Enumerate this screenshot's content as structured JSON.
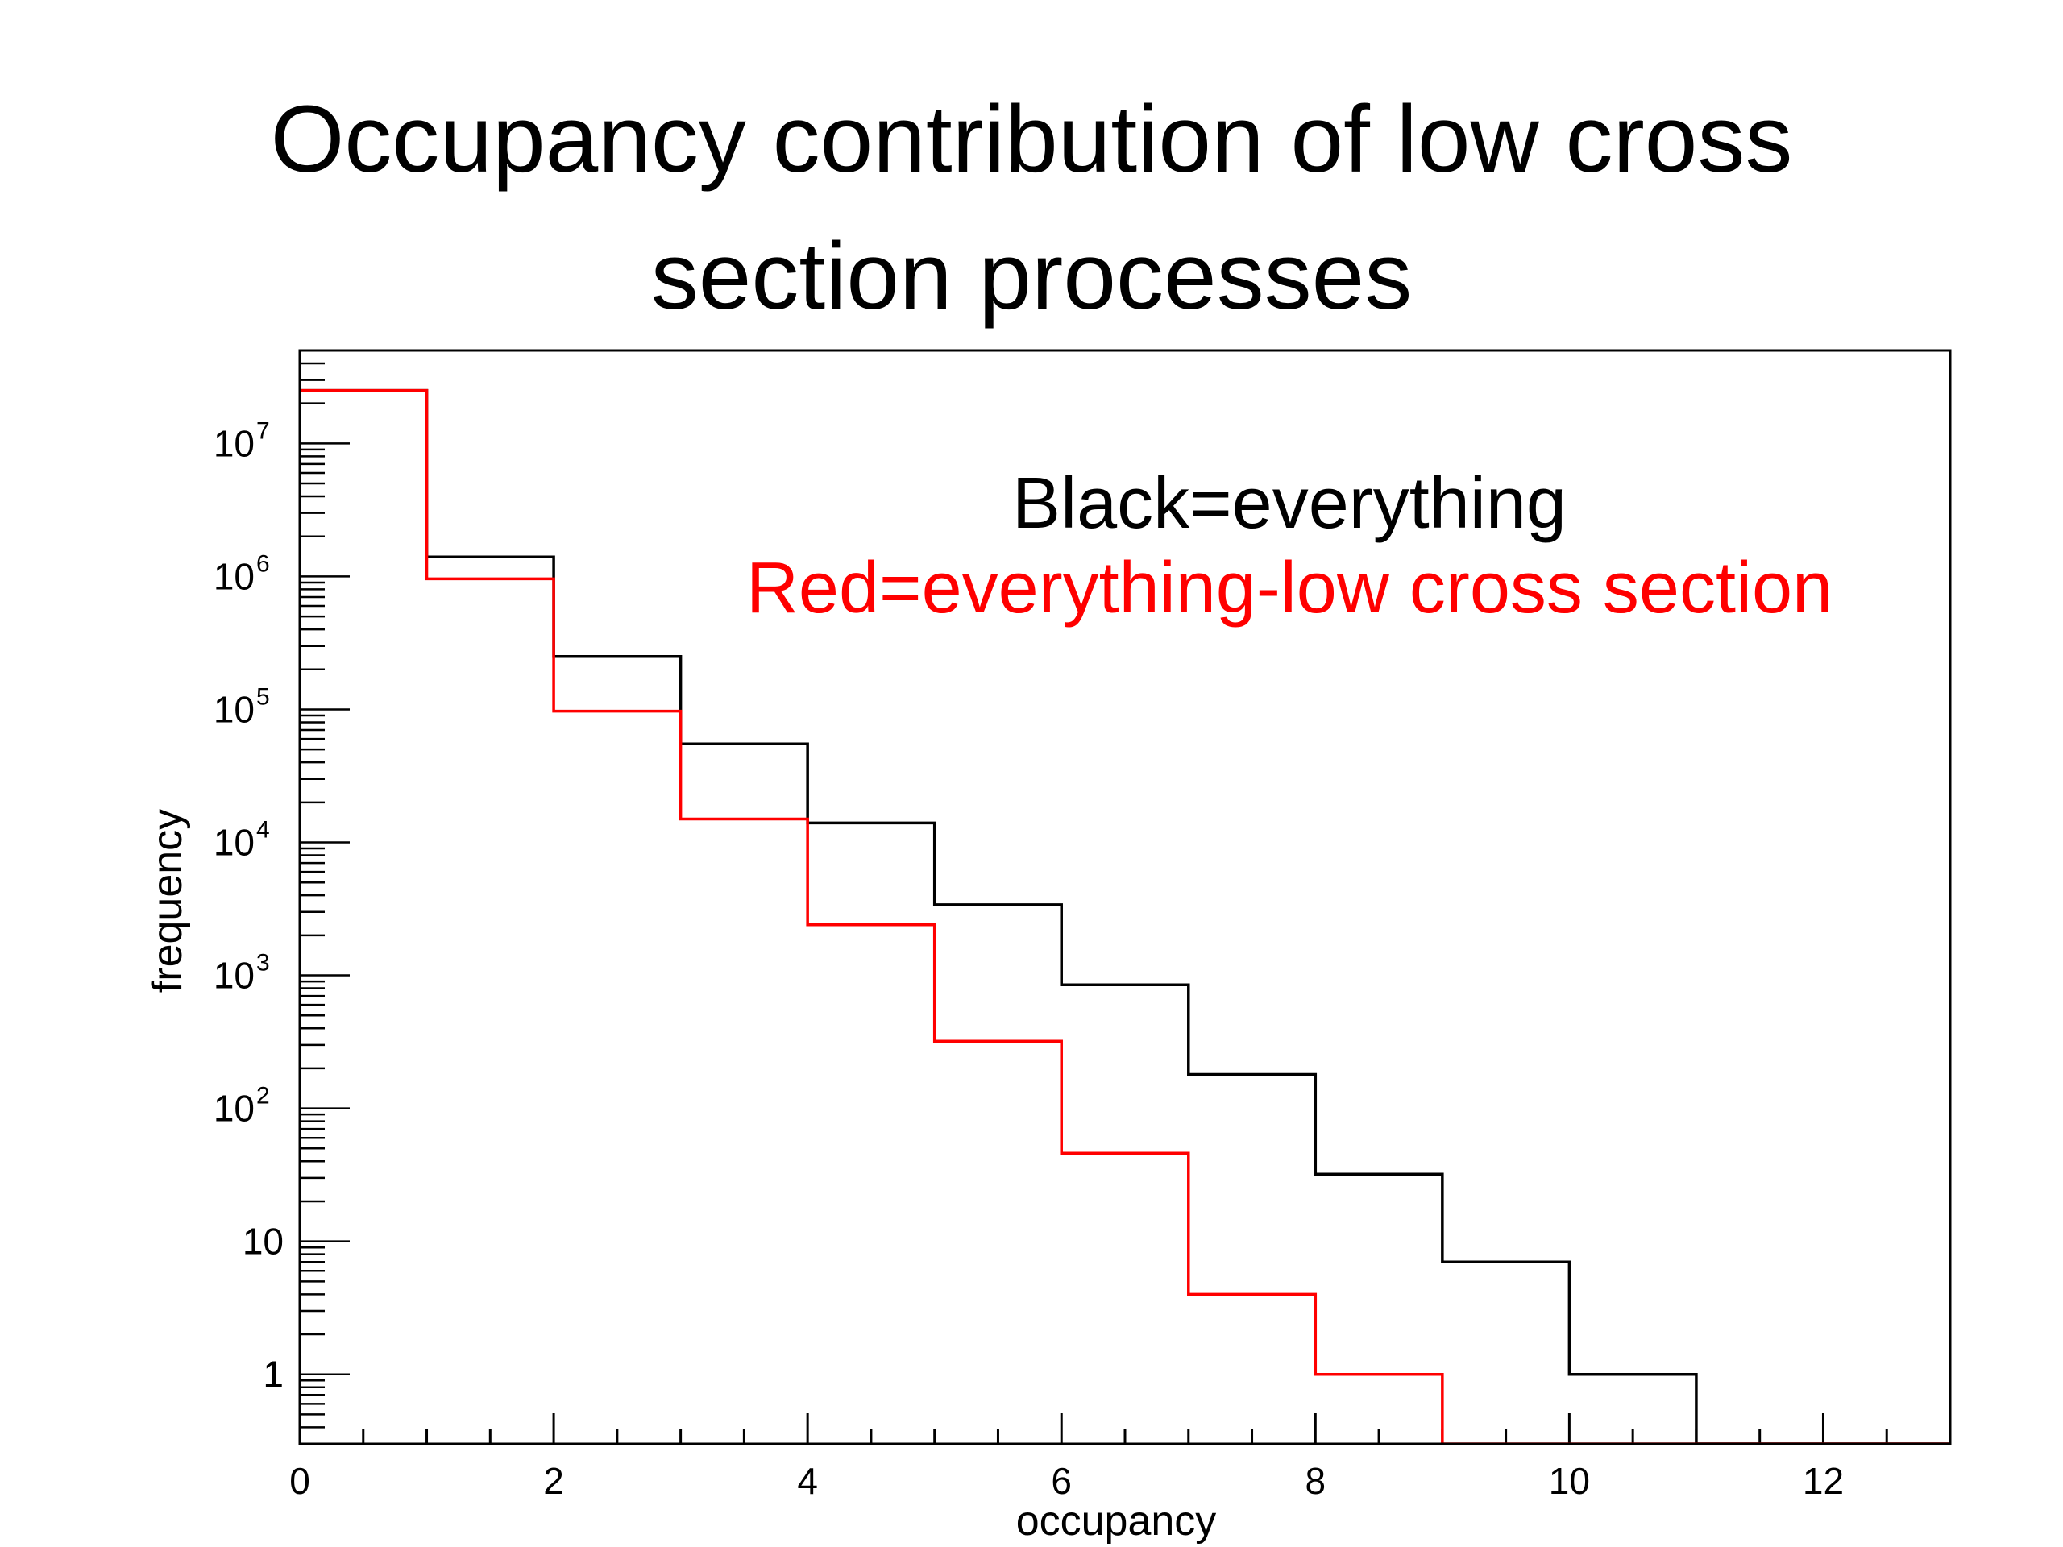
{
  "page": {
    "title_line1": "Occupancy contribution of low cross",
    "title_line2": "section processes"
  },
  "chart_data": {
    "type": "line",
    "step": true,
    "xlabel": "occupancy",
    "ylabel": "frequency",
    "xlim": [
      0,
      13
    ],
    "ylim": [
      0.3,
      50000000
    ],
    "yscale": "log",
    "x_ticks": [
      0,
      2,
      4,
      6,
      8,
      10,
      12
    ],
    "y_ticks": [
      {
        "value": 1,
        "label": "1"
      },
      {
        "value": 10,
        "label": "10"
      },
      {
        "value": 100,
        "base": "10",
        "exp": "2"
      },
      {
        "value": 1000,
        "base": "10",
        "exp": "3"
      },
      {
        "value": 10000,
        "base": "10",
        "exp": "4"
      },
      {
        "value": 100000,
        "base": "10",
        "exp": "5"
      },
      {
        "value": 1000000,
        "base": "10",
        "exp": "6"
      },
      {
        "value": 10000000,
        "base": "10",
        "exp": "7"
      }
    ],
    "bin_edges": [
      0,
      1,
      2,
      3,
      4,
      5,
      6,
      7,
      8,
      9,
      10,
      11,
      12,
      13
    ],
    "series": [
      {
        "color": "#000000",
        "values": [
          25000000,
          1400000,
          250000,
          55000,
          14000,
          3400,
          850,
          180,
          32,
          7,
          1,
          0,
          0
        ]
      },
      {
        "color": "#ff0000",
        "values": [
          25000000,
          960000,
          97000,
          15000,
          2400,
          320,
          46,
          4,
          1,
          0,
          0,
          0,
          0
        ]
      }
    ],
    "annotations": [
      {
        "text": "Black=everything",
        "color": "#000000"
      },
      {
        "text": "Red=everything-low cross section",
        "color": "#ff0000"
      }
    ]
  }
}
